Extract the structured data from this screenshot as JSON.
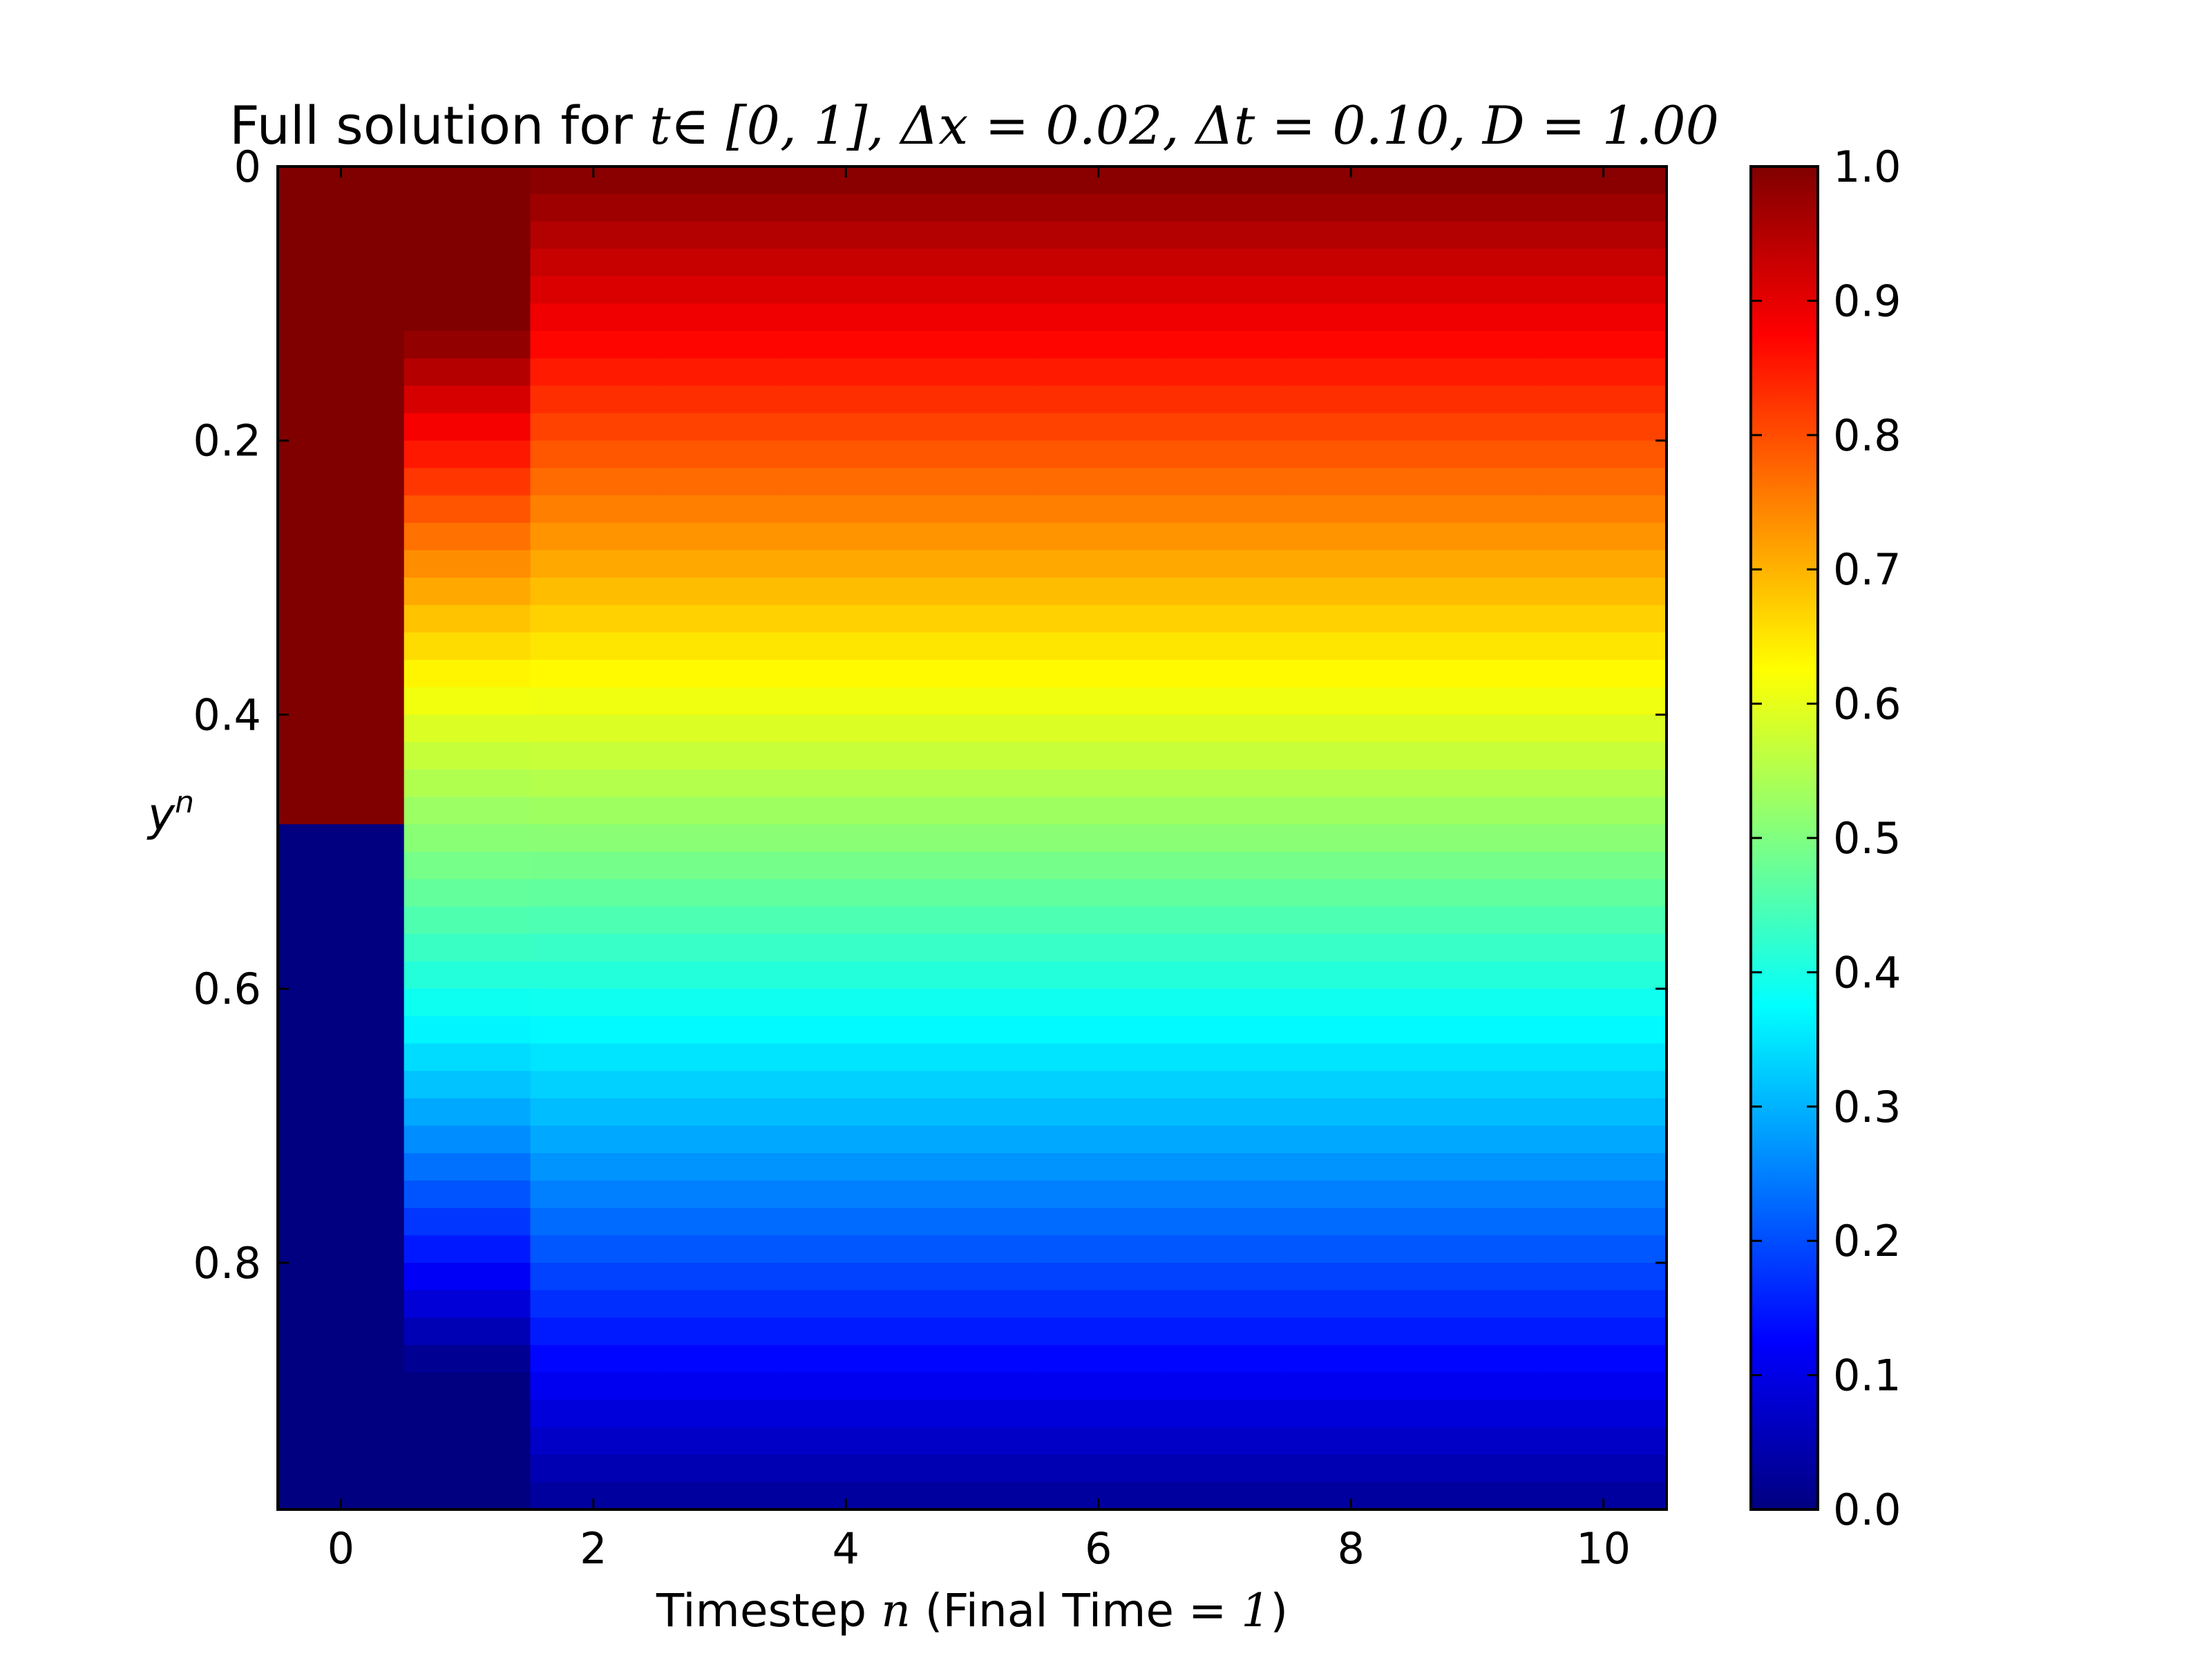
{
  "chart_data": {
    "type": "heatmap",
    "title": {
      "prefix": "Full solution for ",
      "t_label": "t",
      "t_range": "∈ [0, 1], ",
      "dx_label": "Δx = 0.02, ",
      "dt_label": "Δt = 0.10, ",
      "d_label": "D = 1.00"
    },
    "xlabel": {
      "prefix": "Timestep ",
      "var": "n",
      "suffix": " (Final Time = ",
      "final": "1",
      "close": ")"
    },
    "ylabel": {
      "base": "y",
      "sup": "n"
    },
    "x_ticks": [
      "0",
      "2",
      "4",
      "6",
      "8",
      "10"
    ],
    "x_tick_values": [
      0,
      2,
      4,
      6,
      8,
      10
    ],
    "xlim": [
      -0.5,
      10.5
    ],
    "y_ticks": [
      "0",
      "0.2",
      "0.4",
      "0.6",
      "0.8"
    ],
    "y_tick_values": [
      0,
      0.2,
      0.4,
      0.6,
      0.8
    ],
    "ylim": [
      0.98,
      0
    ],
    "colorbar_ticks": [
      "0.0",
      "0.1",
      "0.2",
      "0.3",
      "0.4",
      "0.5",
      "0.6",
      "0.7",
      "0.8",
      "0.9",
      "1.0"
    ],
    "colorbar_range": [
      0,
      1
    ],
    "colormap": "jet",
    "n_steps": 11,
    "grid_dx": 0.02,
    "final_time": 1.0,
    "D": 1.0,
    "ordinate_description": "value u(y, n): initial column = 1 for y < 0.48, 0 otherwise; later columns nearly linear 1 - y"
  }
}
